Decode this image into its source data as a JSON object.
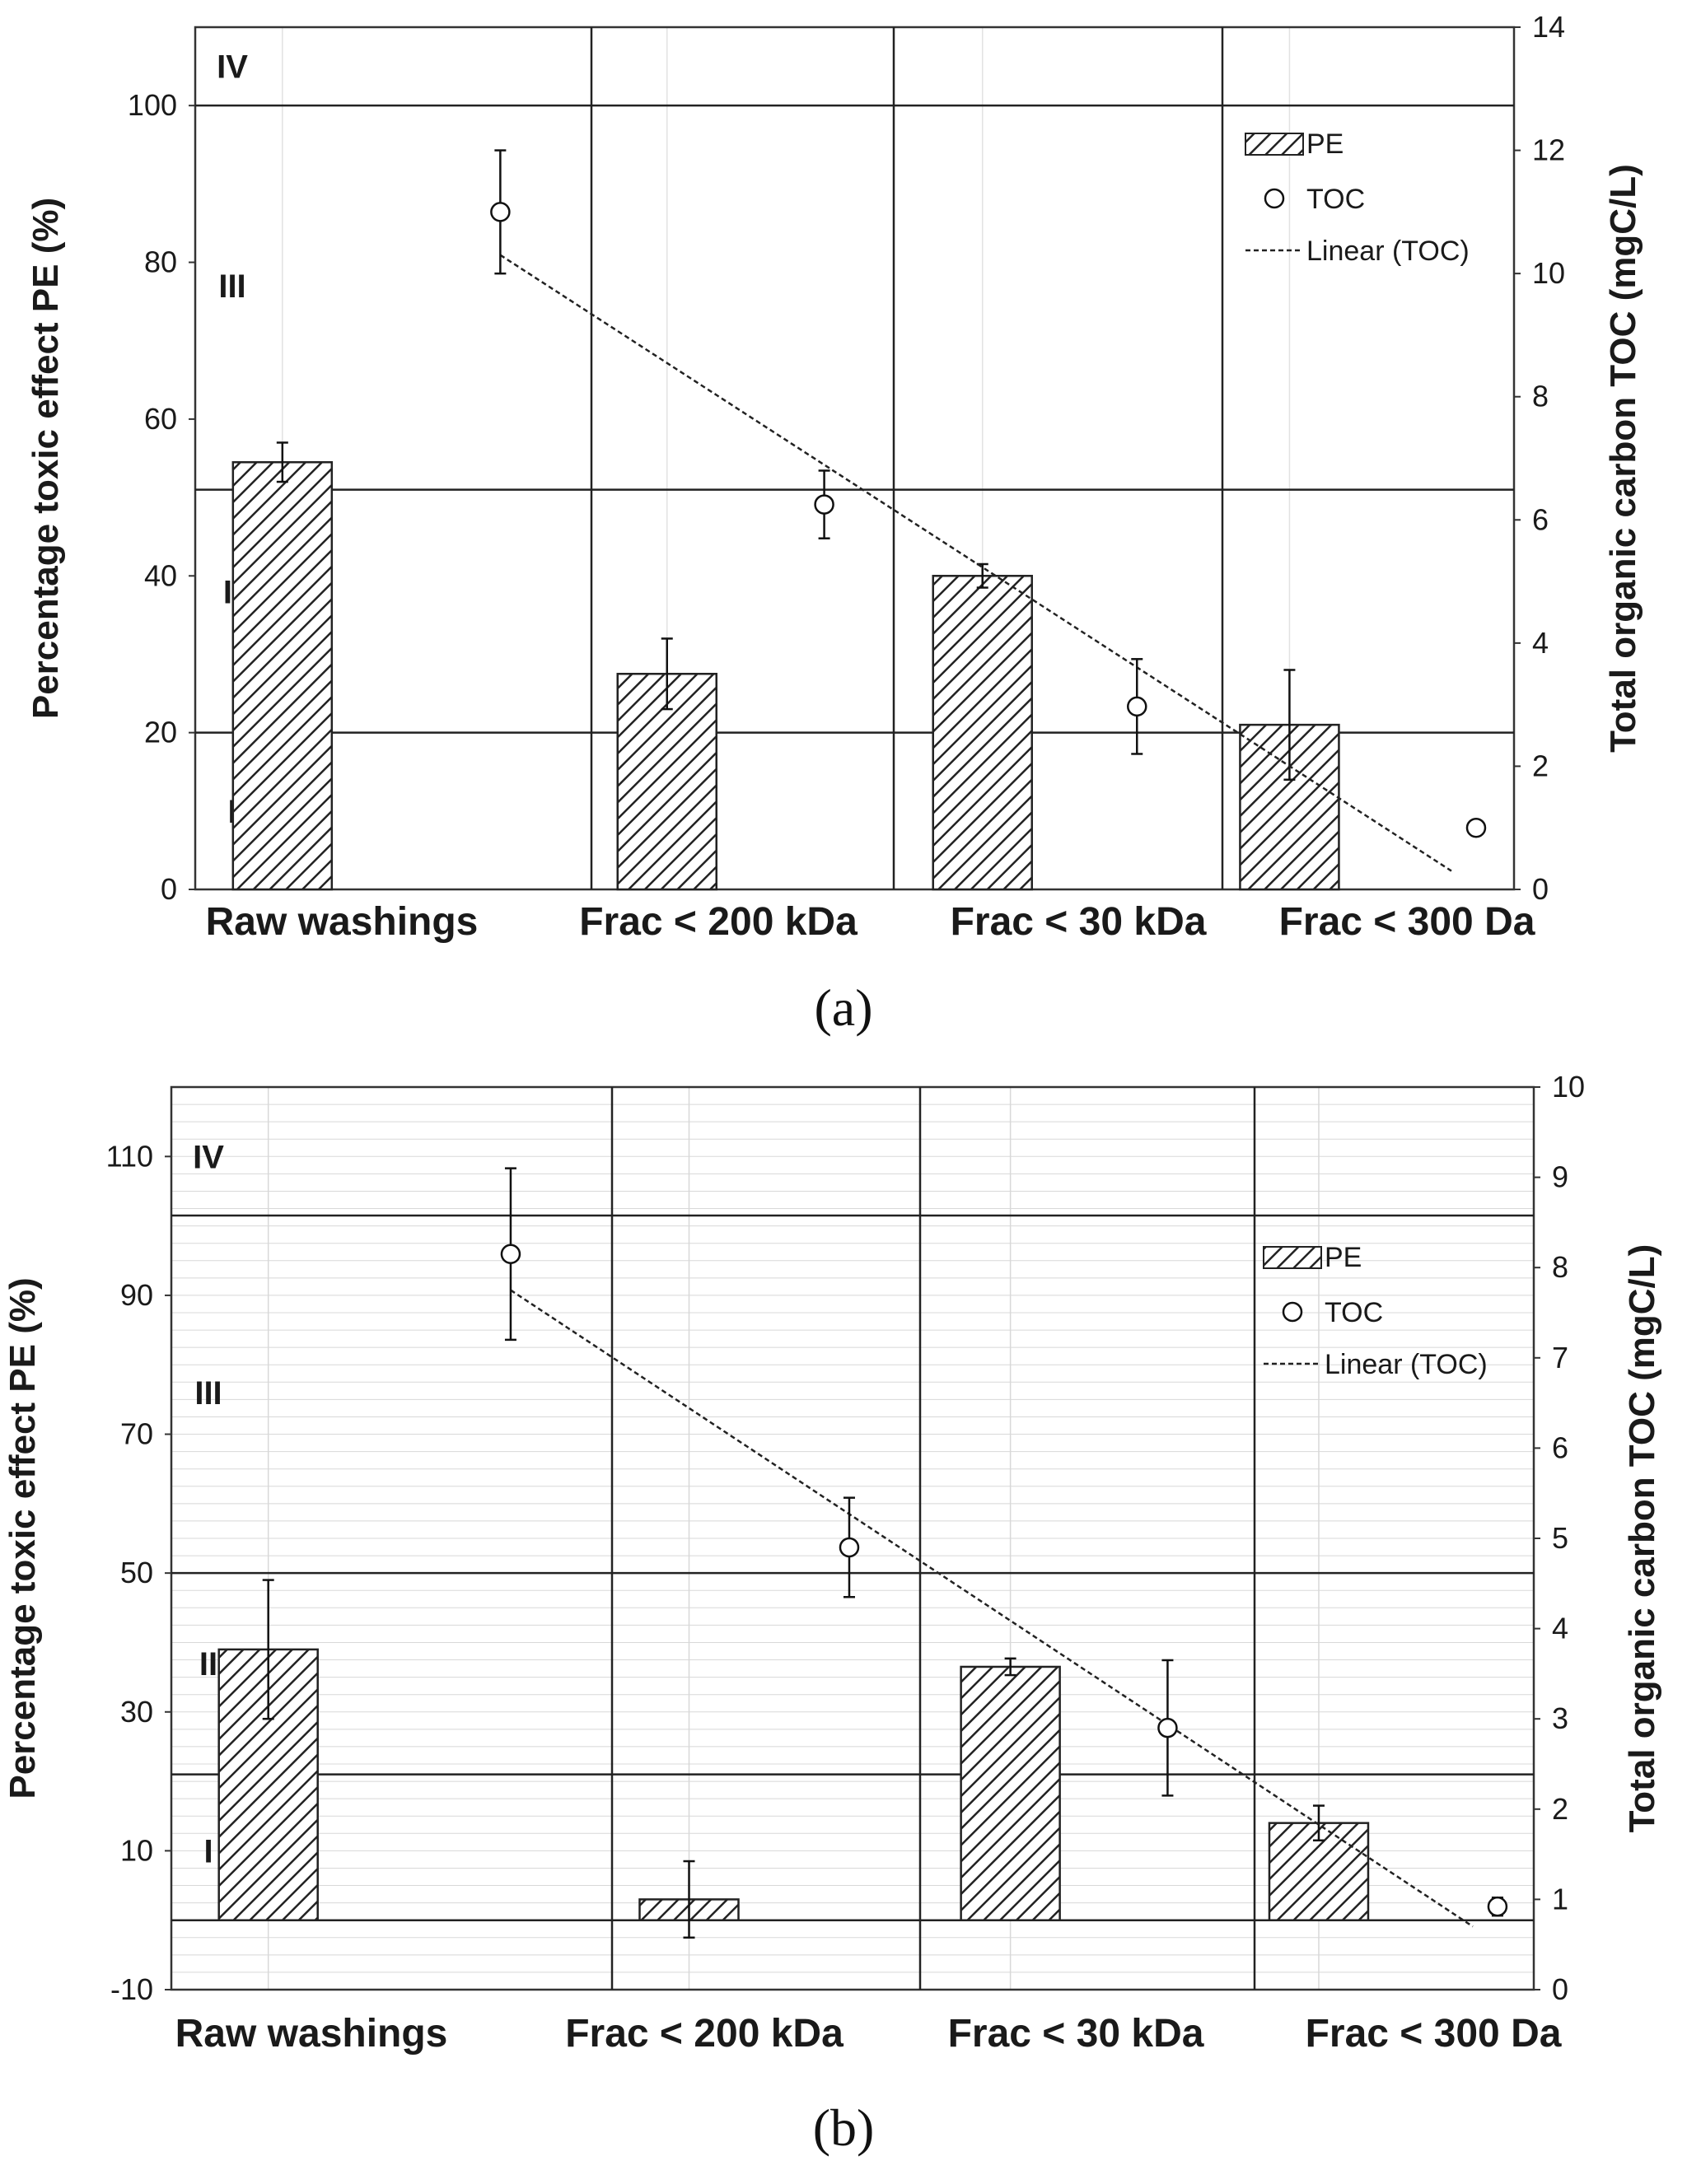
{
  "chart_data": [
    {
      "type": "bar",
      "panel_label": "(a)",
      "categories": [
        "Raw washings",
        "Frac < 200 kDa",
        "Frac < 30 kDa",
        "Frac < 300 Da"
      ],
      "ylabel": "Percentage toxic effect PE (%)",
      "y2label": "Total organic carbon TOC (mgC/L)",
      "ylim": [
        0,
        110
      ],
      "yticks": [
        0,
        20,
        40,
        60,
        80,
        100
      ],
      "y2lim": [
        0,
        14
      ],
      "y2ticks": [
        0,
        2,
        4,
        6,
        8,
        10,
        12,
        14
      ],
      "class_lines": [
        20,
        51,
        100
      ],
      "class_labels": [
        {
          "label": "IV",
          "y": 105
        },
        {
          "label": "III",
          "y": 77
        },
        {
          "label": "II",
          "y": 38
        },
        {
          "label": "I",
          "y": 10
        }
      ],
      "series": [
        {
          "name": "PE",
          "kind": "bar",
          "values": [
            54.5,
            27.5,
            40,
            21
          ],
          "errors": [
            2.5,
            4.5,
            1.5,
            7
          ]
        },
        {
          "name": "TOC",
          "kind": "point",
          "values": [
            11.0,
            6.25,
            2.97,
            1.0
          ],
          "errors": [
            1.0,
            0.55,
            0.77,
            0
          ]
        },
        {
          "name": "Linear (TOC)",
          "kind": "trendline",
          "from": 10.3,
          "to": 0.3
        }
      ],
      "grid": false,
      "legend": "top-right"
    },
    {
      "type": "bar",
      "panel_label": "(b)",
      "categories": [
        "Raw washings",
        "Frac < 200 kDa",
        "Frac < 30 kDa",
        "Frac < 300 Da"
      ],
      "ylabel": "Percentage toxic effect PE (%)",
      "y2label": "Total organic carbon TOC (mgC/L)",
      "ylim": [
        -10,
        120
      ],
      "yticks": [
        -10,
        10,
        30,
        50,
        70,
        90,
        110
      ],
      "y2lim": [
        0,
        10
      ],
      "y2ticks": [
        0,
        1,
        2,
        3,
        4,
        5,
        6,
        7,
        8,
        9,
        10
      ],
      "class_lines": [
        0,
        21,
        50,
        101.5
      ],
      "class_labels": [
        {
          "label": "IV",
          "y": 110
        },
        {
          "label": "III",
          "y": 76
        },
        {
          "label": "II",
          "y": 37
        },
        {
          "label": "I",
          "y": 10
        }
      ],
      "series": [
        {
          "name": "PE",
          "kind": "bar",
          "values": [
            39,
            3,
            36.5,
            14
          ],
          "errors": [
            10,
            5.5,
            1.2,
            2.5
          ]
        },
        {
          "name": "TOC",
          "kind": "point",
          "values": [
            8.15,
            4.9,
            2.9,
            0.92
          ],
          "errors": [
            0.95,
            0.55,
            0.75,
            0.1
          ]
        },
        {
          "name": "Linear (TOC)",
          "kind": "trendline",
          "from": 7.75,
          "to": 0.7
        }
      ],
      "grid": true,
      "legend": "top-right"
    }
  ]
}
